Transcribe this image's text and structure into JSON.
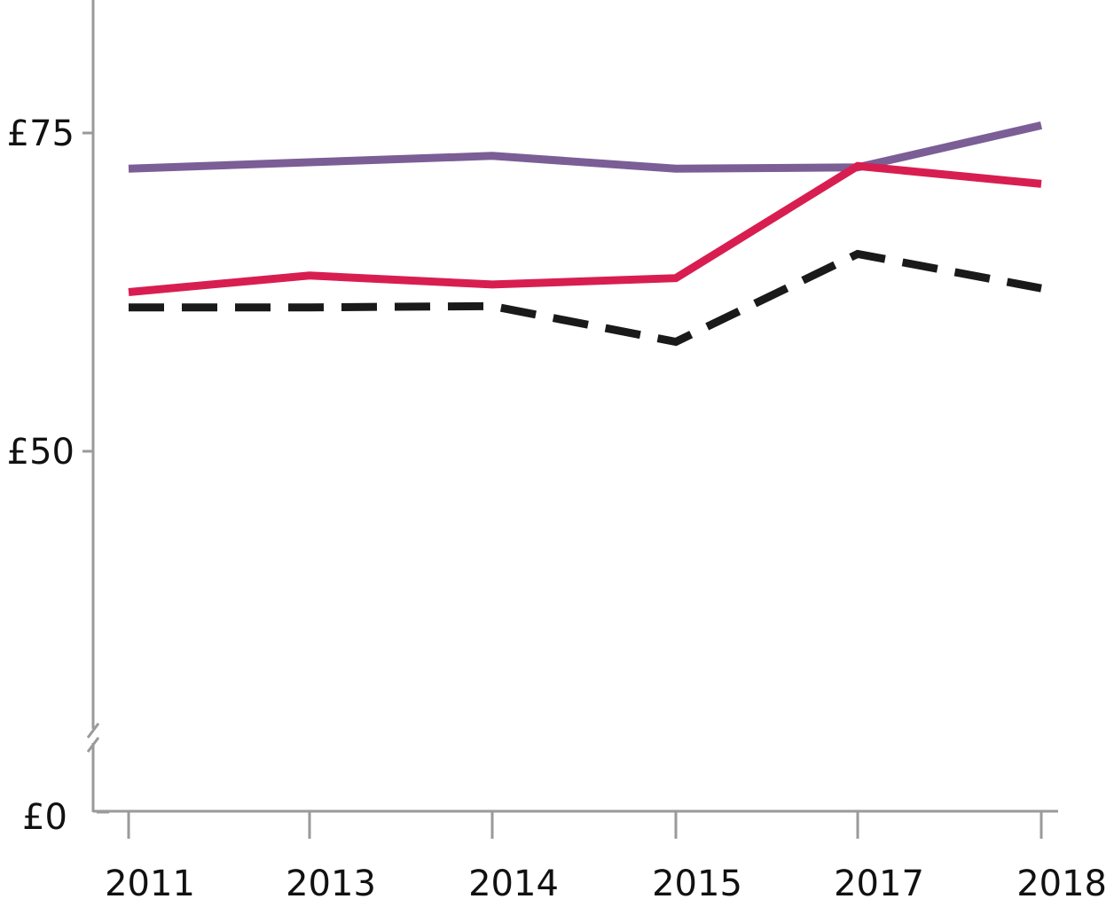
{
  "chart_data": {
    "type": "line",
    "title": "",
    "xlabel": "",
    "ylabel": "",
    "categories": [
      "2011",
      "2013",
      "2014",
      "2015",
      "2017",
      "2018"
    ],
    "y_ticks": [
      {
        "value": 75,
        "label": "£75"
      },
      {
        "value": 50,
        "label": "£50"
      },
      {
        "value": 0,
        "label": "£0"
      }
    ],
    "y_axis_break": true,
    "ylim_display": [
      0,
      85
    ],
    "grid": false,
    "legend": "none",
    "series": [
      {
        "color": "#7b5e96",
        "dash": "solid",
        "values": [
          72.2,
          72.7,
          73.2,
          72.2,
          72.3,
          75.6
        ]
      },
      {
        "color": "#d81e50",
        "dash": "solid",
        "values": [
          62.5,
          63.8,
          63.1,
          63.6,
          72.4,
          71.0
        ]
      },
      {
        "color": "#1a1a1a",
        "dash": "dashed",
        "values": [
          61.3,
          61.3,
          61.4,
          58.6,
          65.5,
          62.8
        ]
      }
    ]
  }
}
